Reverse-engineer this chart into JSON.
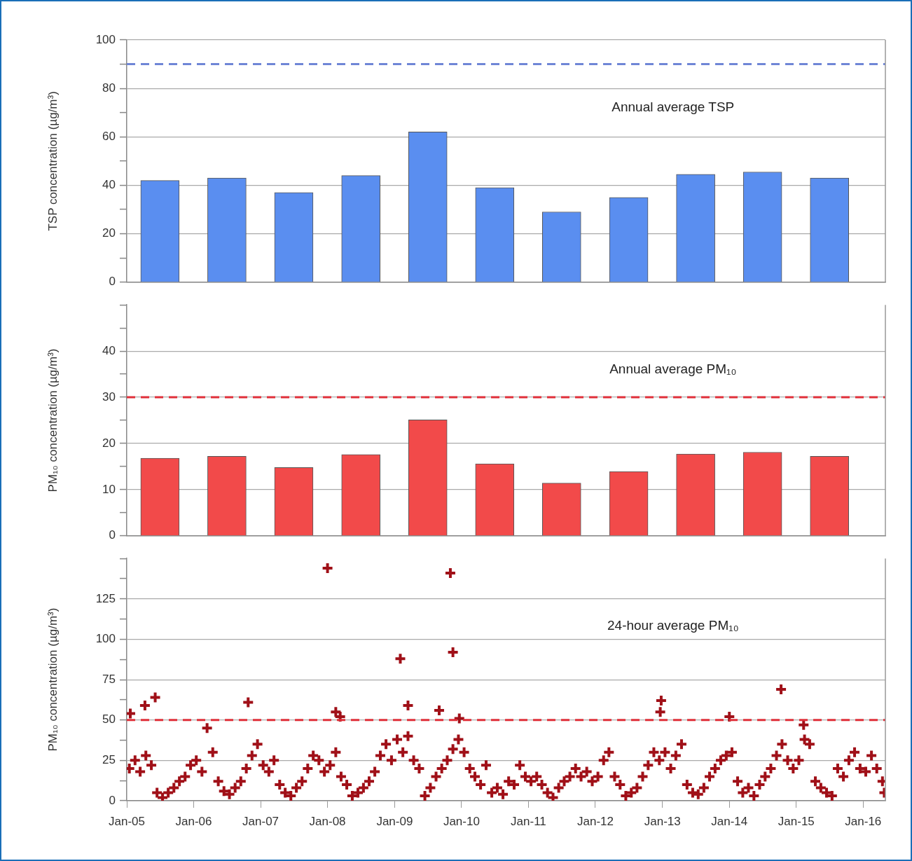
{
  "chart_data": [
    {
      "type": "bar",
      "ylabel": "TSP concentration (µg/m³)",
      "annotations": [
        "Annual average TSP"
      ],
      "x": [
        "2005-07-01",
        "2006-07-01",
        "2007-07-01",
        "2008-07-01",
        "2009-07-01",
        "2010-07-01",
        "2011-07-01",
        "2012-07-01",
        "2013-07-01",
        "2014-07-01",
        "2015-07-01"
      ],
      "values": [
        42,
        43,
        37,
        44,
        62,
        39,
        29,
        35,
        44.5,
        45.5,
        43
      ],
      "color": "#5a8ef0",
      "xlim": [
        "2005-01-01",
        "2016-05-01"
      ],
      "ylim": [
        0,
        100
      ],
      "yticks": [
        0,
        {
          "value": 10,
          "label": null
        },
        20,
        {
          "value": 30,
          "label": null
        },
        40,
        {
          "value": 50,
          "label": null
        },
        60,
        {
          "value": 70,
          "label": null
        },
        80,
        {
          "value": 90,
          "label": null
        },
        100
      ],
      "grid": "y",
      "tick_labels": "y",
      "ref_lines": [
        {
          "axis": "y",
          "value": 90,
          "color": "#6f86d6",
          "line_style": "dashed"
        }
      ]
    },
    {
      "type": "bar",
      "ylabel": "PM₁₀ concentration (µg/m³)",
      "annotations": [
        "Annual average PM₁₀"
      ],
      "x": [
        "2005-07-01",
        "2006-07-01",
        "2007-07-01",
        "2008-07-01",
        "2009-07-01",
        "2010-07-01",
        "2011-07-01",
        "2012-07-01",
        "2013-07-01",
        "2014-07-01",
        "2015-07-01"
      ],
      "values": [
        16.8,
        17.2,
        14.8,
        17.6,
        25.1,
        15.6,
        11.4,
        13.9,
        17.7,
        18.1,
        17.2
      ],
      "color": "#f24a4a",
      "xlim": [
        "2005-01-01",
        "2016-05-01"
      ],
      "ylim": [
        0,
        50
      ],
      "yticks": [
        0,
        {
          "value": 5,
          "label": null
        },
        10,
        {
          "value": 15,
          "label": null
        },
        20,
        {
          "value": 25,
          "label": null
        },
        30,
        {
          "value": 35,
          "label": null
        },
        40,
        {
          "value": 45,
          "label": null
        },
        {
          "value": 50,
          "label": null
        }
      ],
      "grid": "y",
      "tick_labels": "y",
      "ref_lines": [
        {
          "axis": "y",
          "value": 30,
          "color": "#e0303a",
          "line_style": "dashed"
        }
      ]
    },
    {
      "type": "scatter",
      "ylabel": "PM₁₀ concentration (µg/m³)",
      "annotations": [
        "24-hour average PM₁₀"
      ],
      "x": [
        "2005-01-15",
        "2005-02-15",
        "2005-03-15",
        "2005-04-15",
        "2005-05-15",
        "2005-06-15",
        "2005-07-15",
        "2005-08-15",
        "2005-09-15",
        "2005-10-15",
        "2005-11-15",
        "2005-12-15",
        "2006-01-15",
        "2006-02-15",
        "2006-03-15",
        "2006-04-15",
        "2006-05-15",
        "2006-06-15",
        "2006-07-15",
        "2006-08-15",
        "2006-09-15",
        "2006-10-15",
        "2006-11-15",
        "2006-12-15",
        "2007-01-15",
        "2007-02-15",
        "2007-03-15",
        "2007-04-15",
        "2007-05-15",
        "2007-06-15",
        "2007-07-15",
        "2007-08-15",
        "2007-09-15",
        "2007-10-15",
        "2007-11-15",
        "2007-12-15",
        "2008-01-15",
        "2008-02-15",
        "2008-03-15",
        "2008-04-15",
        "2008-05-15",
        "2008-06-15",
        "2008-07-15",
        "2008-08-15",
        "2008-09-15",
        "2008-10-15",
        "2008-11-15",
        "2008-12-15",
        "2009-01-15",
        "2009-02-15",
        "2009-03-15",
        "2009-04-15",
        "2009-05-15",
        "2009-06-15",
        "2009-07-15",
        "2009-08-15",
        "2009-09-15",
        "2009-10-15",
        "2009-11-15",
        "2009-12-15",
        "2010-01-15",
        "2010-02-15",
        "2010-03-15",
        "2010-04-15",
        "2010-05-15",
        "2010-06-15",
        "2010-07-15",
        "2010-08-15",
        "2010-09-15",
        "2010-10-15",
        "2010-11-15",
        "2010-12-15",
        "2011-01-15",
        "2011-02-15",
        "2011-03-15",
        "2011-04-15",
        "2011-05-15",
        "2011-06-15",
        "2011-07-15",
        "2011-08-15",
        "2011-09-15",
        "2011-10-15",
        "2011-11-15",
        "2011-12-15",
        "2012-01-15",
        "2012-02-15",
        "2012-03-15",
        "2012-04-15",
        "2012-05-15",
        "2012-06-15",
        "2012-07-15",
        "2012-08-15",
        "2012-09-15",
        "2012-10-15",
        "2012-11-15",
        "2012-12-15",
        "2013-01-15",
        "2013-02-15",
        "2013-03-15",
        "2013-04-15",
        "2013-05-15",
        "2013-06-15",
        "2013-07-15",
        "2013-08-15",
        "2013-09-15",
        "2013-10-15",
        "2013-11-15",
        "2013-12-15",
        "2014-01-15",
        "2014-02-15",
        "2014-03-15",
        "2014-04-15",
        "2014-05-15",
        "2014-06-15",
        "2014-07-15",
        "2014-08-15",
        "2014-09-15",
        "2014-10-15",
        "2014-11-15",
        "2014-12-15",
        "2015-01-15",
        "2015-02-15",
        "2015-03-15",
        "2015-04-15",
        "2015-05-15",
        "2015-06-15",
        "2015-07-15",
        "2015-08-15",
        "2015-09-15",
        "2015-10-15",
        "2015-11-15",
        "2015-12-15",
        "2016-01-15",
        "2016-02-15",
        "2016-03-15",
        "2016-04-15",
        "2016-04-25",
        "2005-01-20",
        "2005-04-10",
        "2005-06-05",
        "2006-10-25",
        "2008-01-01",
        "2008-02-15",
        "2008-03-10",
        "2009-02-01",
        "2009-03-15",
        "2009-09-01",
        "2009-11-01",
        "2009-11-15",
        "2009-12-20",
        "2012-12-20",
        "2012-12-25",
        "2014-01-01",
        "2014-10-10",
        "2015-02-10"
      ],
      "values": [
        20,
        25,
        18,
        28,
        22,
        5,
        2,
        5,
        8,
        12,
        15,
        22,
        25,
        18,
        45,
        30,
        12,
        6,
        4,
        8,
        12,
        20,
        28,
        35,
        22,
        18,
        25,
        10,
        5,
        3,
        8,
        12,
        20,
        28,
        25,
        18,
        22,
        30,
        15,
        10,
        3,
        5,
        8,
        12,
        18,
        28,
        35,
        25,
        38,
        30,
        40,
        25,
        20,
        3,
        8,
        15,
        20,
        25,
        32,
        38,
        30,
        20,
        15,
        10,
        22,
        5,
        8,
        4,
        12,
        10,
        22,
        15,
        12,
        15,
        10,
        5,
        2,
        8,
        12,
        15,
        20,
        15,
        18,
        12,
        15,
        25,
        30,
        15,
        10,
        3,
        5,
        8,
        15,
        22,
        30,
        25,
        30,
        20,
        28,
        35,
        10,
        5,
        4,
        8,
        15,
        20,
        25,
        28,
        30,
        12,
        5,
        8,
        3,
        10,
        15,
        20,
        28,
        35,
        25,
        20,
        25,
        38,
        35,
        12,
        8,
        5,
        3,
        20,
        15,
        25,
        30,
        20,
        18,
        28,
        20,
        12,
        5,
        54,
        59,
        64,
        61,
        144,
        55,
        52,
        88,
        59,
        56,
        141,
        92,
        51,
        55,
        62,
        52,
        69,
        47
      ],
      "color": "#a01018",
      "marker": "cross",
      "xlim": [
        "2005-01-01",
        "2016-05-01"
      ],
      "ylim": [
        0,
        150
      ],
      "xticks": [
        {
          "value": "2005-01-01",
          "label": "Jan-05"
        },
        {
          "value": "2006-01-01",
          "label": "Jan-06"
        },
        {
          "value": "2007-01-01",
          "label": "Jan-07"
        },
        {
          "value": "2008-01-01",
          "label": "Jan-08"
        },
        {
          "value": "2009-01-01",
          "label": "Jan-09"
        },
        {
          "value": "2010-01-01",
          "label": "Jan-10"
        },
        {
          "value": "2011-01-01",
          "label": "Jan-11"
        },
        {
          "value": "2012-01-01",
          "label": "Jan-12"
        },
        {
          "value": "2013-01-01",
          "label": "Jan-13"
        },
        {
          "value": "2014-01-01",
          "label": "Jan-14"
        },
        {
          "value": "2015-01-01",
          "label": "Jan-15"
        },
        {
          "value": "2016-01-01",
          "label": "Jan-16"
        }
      ],
      "yticks": [
        0,
        {
          "value": 12.5,
          "label": null
        },
        25,
        {
          "value": 37.5,
          "label": null
        },
        50,
        {
          "value": 62.5,
          "label": null
        },
        75,
        {
          "value": 87.5,
          "label": null
        },
        100,
        {
          "value": 112.5,
          "label": null
        },
        125,
        {
          "value": 137.5,
          "label": null
        },
        {
          "value": 150,
          "label": null
        }
      ],
      "grid": "y",
      "ref_lines": [
        {
          "axis": "y",
          "value": 50,
          "color": "#e0303a",
          "line_style": "dashed"
        }
      ]
    }
  ]
}
